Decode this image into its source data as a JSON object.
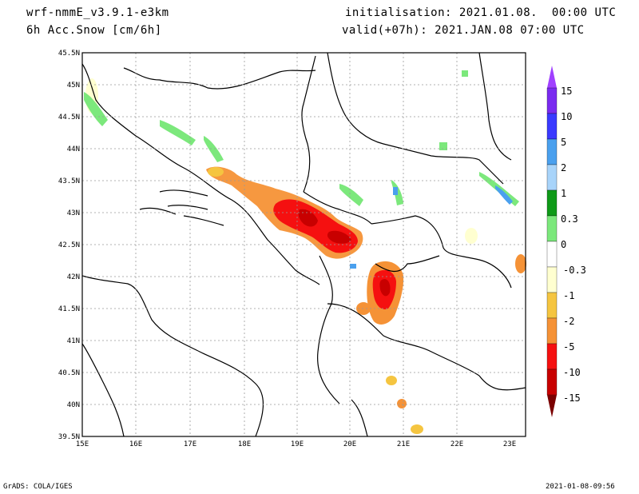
{
  "header": {
    "model": "wrf-nmmE_v3.9.1-e3km",
    "field": "6h Acc.Snow [cm/6h]",
    "init": "initialisation: 2021.01.08.  00:00 UTC",
    "valid": "valid(+07h): 2021.JAN.08 07:00 UTC"
  },
  "footer": {
    "left": "GrADS: COLA/IGES",
    "right": "2021-01-08-09:56"
  },
  "map": {
    "lon_ticks": [
      "15E",
      "16E",
      "17E",
      "18E",
      "19E",
      "20E",
      "21E",
      "22E",
      "23E"
    ],
    "lat_ticks": [
      "45.5N",
      "45N",
      "44.5N",
      "44N",
      "43.5N",
      "43N",
      "42.5N",
      "42N",
      "41.5N",
      "41N",
      "40.5N",
      "40N",
      "39.5N"
    ]
  },
  "colorbar": {
    "labels": [
      "15",
      "10",
      "5",
      "2",
      "1",
      "0.3",
      "0",
      "-0.3",
      "-1",
      "-2",
      "-5",
      "-10",
      "-15"
    ],
    "colors": [
      "#7a2bf0",
      "#3a3aff",
      "#4aa0ee",
      "#a8d4fa",
      "#0f9a18",
      "#7ce87c",
      "#ffffff",
      "#ffffd0",
      "#f5c540",
      "#f59236",
      "#f51010",
      "#c80000",
      "#8a0000"
    ],
    "top_arrow_color": "#a040ff",
    "bottom_arrow_color": "#7a0000"
  }
}
